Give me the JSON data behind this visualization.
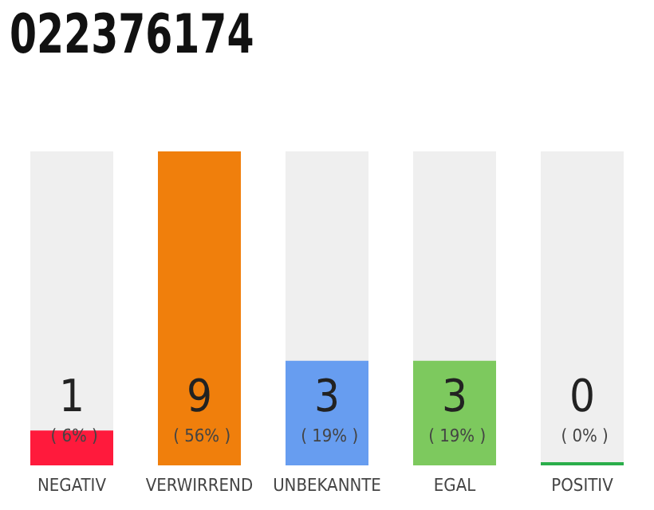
{
  "chart_data": {
    "type": "bar",
    "title": "022376174",
    "categories": [
      "NEGATIV",
      "VERWIRREND",
      "UNBEKANNTE",
      "EGAL",
      "POSITIV"
    ],
    "values": [
      1,
      9,
      3,
      3,
      0
    ],
    "colors": [
      "#ff1a3c",
      "#f07f0c",
      "#679df0",
      "#7dc95e",
      "#2aae4a"
    ],
    "value_labels": [
      "1 ( 6% )",
      "9 ( 56% )",
      "3 ( 19% )",
      "3 ( 19% )",
      "0 ( 0% )"
    ]
  }
}
